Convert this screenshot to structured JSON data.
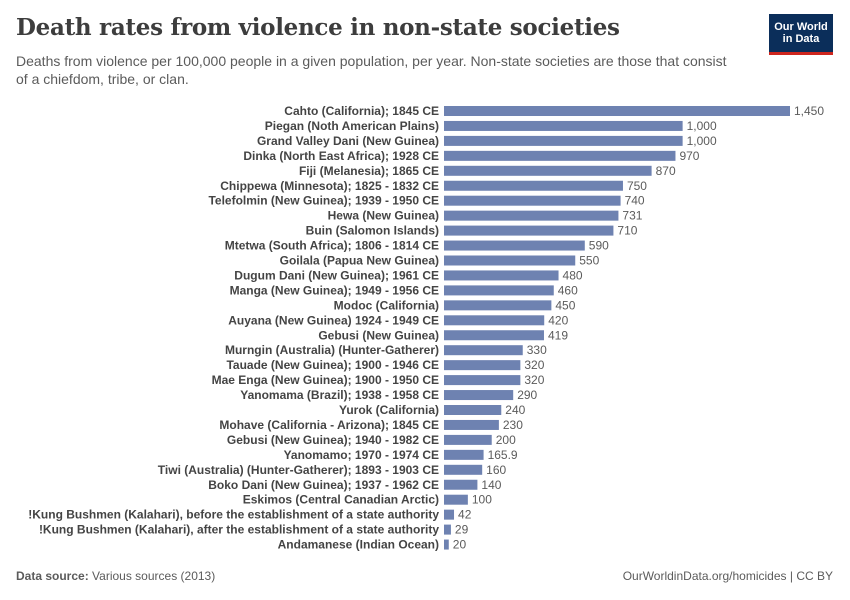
{
  "title": "Death rates from violence in non-state societies",
  "subtitle": "Deaths from violence per 100,000 people in a given population, per year. Non-state societies are those that consist of a chiefdom, tribe, or clan.",
  "logo": {
    "line1": "Our World",
    "line2": "in Data"
  },
  "footer": {
    "source_label": "Data source:",
    "source_text": "Various sources (2013)",
    "credit": "OurWorldinData.org/homicides | CC BY"
  },
  "colors": {
    "bar": "#6e82b1",
    "title": "#3d3d3d",
    "text": "#5b5b5b",
    "logo_bg": "#0b2e5a",
    "logo_accent": "#ce261e"
  },
  "chart_data": {
    "type": "bar",
    "orientation": "horizontal",
    "categories": [
      "Cahto (California); 1845 CE",
      "Piegan (Noth American Plains)",
      "Grand Valley Dani (New Guinea)",
      "Dinka (North East Africa); 1928 CE",
      "Fiji (Melanesia); 1865 CE",
      "Chippewa (Minnesota); 1825 - 1832 CE",
      "Telefolmin (New Guinea); 1939 - 1950 CE",
      "Hewa (New Guinea)",
      "Buin (Salomon Islands)",
      "Mtetwa (South Africa); 1806 - 1814 CE",
      "Goilala (Papua New Guinea)",
      "Dugum Dani (New Guinea); 1961 CE",
      "Manga (New Guinea); 1949 - 1956 CE",
      "Modoc (California)",
      "Auyana (New Guinea) 1924 - 1949 CE",
      "Gebusi (New Guinea)",
      "Murngin (Australia) (Hunter-Gatherer)",
      "Tauade (New Guinea); 1900 - 1946 CE",
      "Mae Enga (New Guinea); 1900 - 1950 CE",
      "Yanomama (Brazil); 1938 - 1958 CE",
      "Yurok (California)",
      "Mohave (California - Arizona); 1845 CE",
      "Gebusi (New Guinea); 1940 - 1982 CE",
      "Yanomamo; 1970 - 1974 CE",
      "Tiwi (Australia) (Hunter-Gatherer); 1893 - 1903 CE",
      "Boko Dani (New Guinea); 1937 - 1962 CE",
      "Eskimos (Central Canadian Arctic)",
      "!Kung Bushmen (Kalahari), before the establishment of a state authority",
      "!Kung Bushmen (Kalahari), after the establishment of a state authority",
      "Andamanese (Indian Ocean)"
    ],
    "values": [
      1450,
      1000,
      1000,
      970,
      870,
      750,
      740,
      731,
      710,
      590,
      550,
      480,
      460,
      450,
      420,
      419,
      330,
      320,
      320,
      290,
      240,
      230,
      200,
      165.9,
      160,
      140,
      100,
      42,
      29,
      20
    ],
    "value_labels": [
      "1,450",
      "1,000",
      "1,000",
      "970",
      "870",
      "750",
      "740",
      "731",
      "710",
      "590",
      "550",
      "480",
      "460",
      "450",
      "420",
      "419",
      "330",
      "320",
      "320",
      "290",
      "240",
      "230",
      "200",
      "165.9",
      "160",
      "140",
      "100",
      "42",
      "29",
      "20"
    ],
    "title": "Death rates from violence in non-state societies",
    "xlim": [
      0,
      1450
    ],
    "grid": false,
    "legend": "none"
  }
}
